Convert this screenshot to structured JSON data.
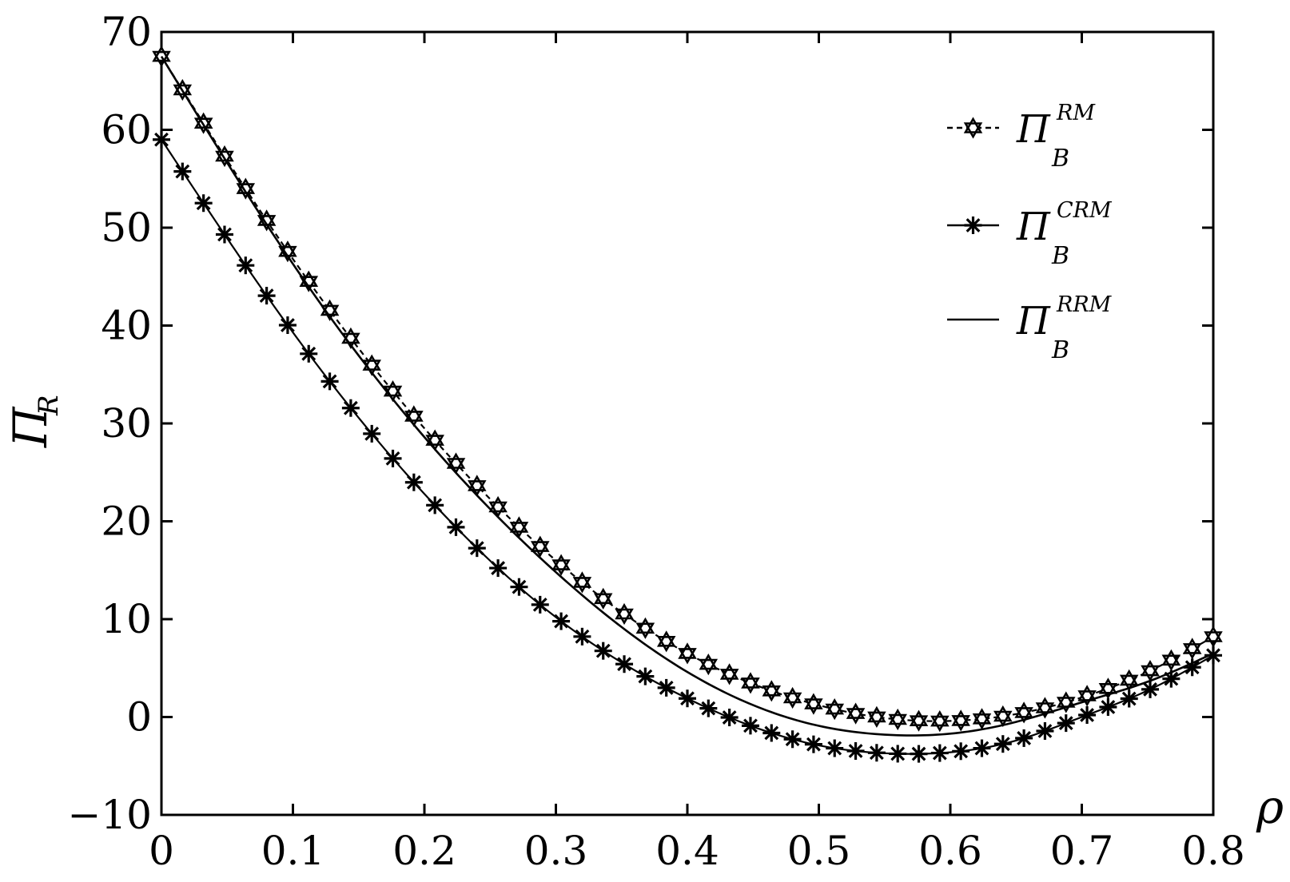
{
  "chart_data": {
    "type": "line",
    "xlabel": "ρ",
    "ylabel": {
      "main": "Π",
      "sub": "R"
    },
    "xlim": [
      0,
      0.8
    ],
    "ylim": [
      -10,
      70
    ],
    "xticks": [
      0,
      0.1,
      0.2,
      0.3,
      0.4,
      0.5,
      0.6,
      0.7,
      0.8
    ],
    "xtick_labels": [
      "0",
      "0.1",
      "0.2",
      "0.3",
      "0.4",
      "0.5",
      "0.6",
      "0.7",
      "0.8"
    ],
    "yticks": [
      -10,
      0,
      10,
      20,
      30,
      40,
      50,
      60,
      70
    ],
    "ytick_labels": [
      "−10",
      "0",
      "10",
      "20",
      "30",
      "40",
      "50",
      "60",
      "70"
    ],
    "grid": false,
    "legend_position": "top-right",
    "series": [
      {
        "name": "Π_B^RM",
        "label_main": "Π",
        "label_sub": "B",
        "label_sup": "RM",
        "style": "dashed",
        "marker": "hexagram",
        "x": [
          0,
          0.1,
          0.2,
          0.3,
          0.4,
          0.5,
          0.55,
          0.6,
          0.65,
          0.7,
          0.75,
          0.8
        ],
        "y": [
          67.5,
          46.8,
          29.5,
          16.0,
          6.5,
          1.2,
          -0.1,
          -0.4,
          0.3,
          2.0,
          4.6,
          8.2
        ]
      },
      {
        "name": "Π_B^CRM",
        "label_main": "Π",
        "label_sub": "B",
        "label_sup": "CRM",
        "style": "solid",
        "marker": "asterisk",
        "x": [
          0,
          0.1,
          0.2,
          0.3,
          0.4,
          0.5,
          0.55,
          0.6,
          0.65,
          0.7,
          0.75,
          0.8
        ],
        "y": [
          59.0,
          39.3,
          22.8,
          10.2,
          1.9,
          -2.9,
          -3.7,
          -3.6,
          -2.4,
          0.0,
          2.7,
          6.3
        ]
      },
      {
        "name": "Π_B^RRM",
        "label_main": "Π",
        "label_sub": "B",
        "label_sup": "RRM",
        "style": "solid",
        "marker": "none",
        "x": [
          0,
          0.1,
          0.2,
          0.3,
          0.4,
          0.5,
          0.55,
          0.6,
          0.65,
          0.7,
          0.75,
          0.8
        ],
        "y": [
          67.5,
          46.3,
          28.6,
          14.8,
          4.6,
          -0.9,
          -1.8,
          -1.7,
          -0.5,
          1.5,
          3.6,
          6.5
        ]
      }
    ]
  }
}
